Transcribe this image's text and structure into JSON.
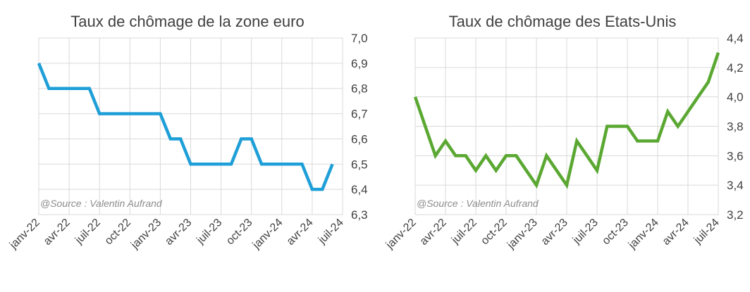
{
  "chart_data": [
    {
      "type": "line",
      "title": "Taux de chômage de la zone euro",
      "source": "@Source : Valentin Aufrand",
      "y_ticks": [
        "6,3",
        "6,4",
        "6,5",
        "6,6",
        "6,7",
        "6,8",
        "6,9",
        "7,0"
      ],
      "ylim": [
        6.3,
        7.0
      ],
      "y_axis_side": "right",
      "grid": true,
      "x_ticks": [
        "janv-22",
        "avr-22",
        "juil-22",
        "oct-22",
        "janv-23",
        "avr-23",
        "juil-23",
        "oct-23",
        "janv-24",
        "avr-24",
        "juil-24"
      ],
      "series": [
        {
          "color": "#1f9fd8",
          "values": [
            6.9,
            6.8,
            6.8,
            6.8,
            6.8,
            6.8,
            6.7,
            6.7,
            6.7,
            6.7,
            6.7,
            6.7,
            6.7,
            6.6,
            6.6,
            6.5,
            6.5,
            6.5,
            6.5,
            6.5,
            6.6,
            6.6,
            6.5,
            6.5,
            6.5,
            6.5,
            6.5,
            6.4,
            6.4,
            6.5
          ]
        }
      ]
    },
    {
      "type": "line",
      "title": "Taux de chômage des Etats-Unis",
      "source": "@Source : Valentin Aufrand",
      "y_ticks": [
        "3,2",
        "3,4",
        "3,6",
        "3,8",
        "4,0",
        "4,2",
        "4,4"
      ],
      "ylim": [
        3.2,
        4.4
      ],
      "y_axis_side": "right",
      "grid": true,
      "x_ticks": [
        "janv-22",
        "avr-22",
        "juil-22",
        "oct-22",
        "janv-23",
        "avr-23",
        "juil-23",
        "oct-23",
        "janv-24",
        "avr-24",
        "juil-24"
      ],
      "series": [
        {
          "color": "#5aa832",
          "values": [
            4.0,
            3.8,
            3.6,
            3.7,
            3.6,
            3.6,
            3.5,
            3.6,
            3.5,
            3.6,
            3.6,
            3.5,
            3.4,
            3.6,
            3.5,
            3.4,
            3.7,
            3.6,
            3.5,
            3.8,
            3.8,
            3.8,
            3.7,
            3.7,
            3.7,
            3.9,
            3.8,
            3.9,
            4.0,
            4.1,
            4.3
          ]
        }
      ]
    }
  ]
}
